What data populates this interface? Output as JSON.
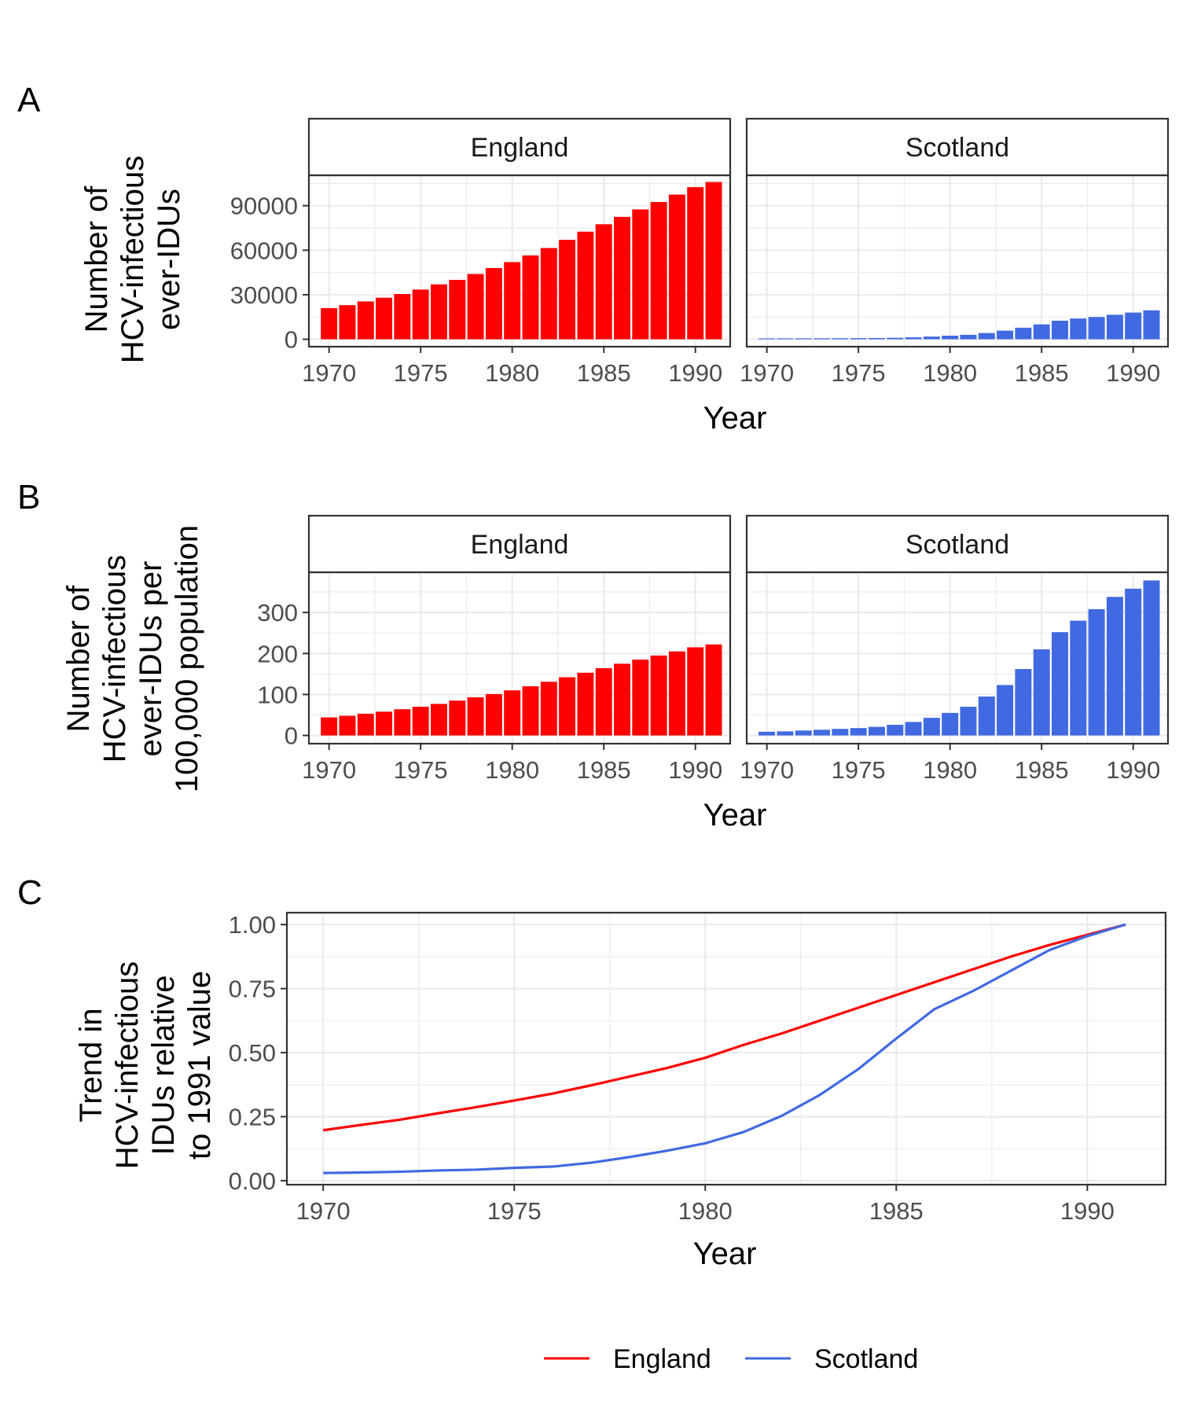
{
  "panel_labels": [
    "A",
    "B",
    "C"
  ],
  "colors": {
    "England": "#ff0000",
    "Scotland": "#4169e1",
    "grid": "#ebebeb",
    "frame": "#333333"
  },
  "legend": {
    "placement": "bottom",
    "items": [
      "England",
      "Scotland"
    ]
  },
  "chart_data": [
    {
      "panel": "A",
      "type": "bar",
      "facets": [
        "England",
        "Scotland"
      ],
      "xlabel": "Year",
      "ylabel": "Number of\nHCV-infectious\never-IDUs",
      "x_ticks": [
        1970,
        1975,
        1980,
        1985,
        1990
      ],
      "y_ticks": [
        0,
        30000,
        60000,
        90000
      ],
      "xlim": [
        1968.9,
        1991.9
      ],
      "ylim": [
        -5000,
        110500
      ],
      "grid": true,
      "categories": [
        1970,
        1971,
        1972,
        1973,
        1974,
        1975,
        1976,
        1977,
        1978,
        1979,
        1980,
        1981,
        1982,
        1983,
        1984,
        1985,
        1986,
        1987,
        1988,
        1989,
        1990,
        1991
      ],
      "series": [
        {
          "name": "England",
          "values": [
            21000,
            23000,
            25500,
            28000,
            30500,
            33500,
            37000,
            40000,
            44000,
            48000,
            52000,
            56500,
            61500,
            67000,
            72500,
            77500,
            82500,
            87500,
            92500,
            97500,
            102500,
            106000
          ]
        },
        {
          "name": "Scotland",
          "values": [
            600,
            620,
            650,
            680,
            720,
            780,
            850,
            1000,
            1300,
            1800,
            2400,
            3000,
            4200,
            5800,
            7800,
            10000,
            12500,
            14000,
            15000,
            16500,
            18000,
            19500
          ]
        }
      ]
    },
    {
      "panel": "B",
      "type": "bar",
      "facets": [
        "England",
        "Scotland"
      ],
      "xlabel": "Year",
      "ylabel": "Number of\nHCV-infectious\never-IDUs per\n100,000 population",
      "x_ticks": [
        1970,
        1975,
        1980,
        1985,
        1990
      ],
      "y_ticks": [
        0,
        100,
        200,
        300
      ],
      "xlim": [
        1968.9,
        1991.9
      ],
      "ylim": [
        -20,
        398
      ],
      "grid": true,
      "categories": [
        1970,
        1971,
        1972,
        1973,
        1974,
        1975,
        1976,
        1977,
        1978,
        1979,
        1980,
        1981,
        1982,
        1983,
        1984,
        1985,
        1986,
        1987,
        1988,
        1989,
        1990,
        1991
      ],
      "series": [
        {
          "name": "England",
          "values": [
            44,
            48,
            53,
            58,
            64,
            70,
            77,
            85,
            93,
            101,
            110,
            120,
            131,
            142,
            153,
            164,
            175,
            185,
            195,
            205,
            215,
            222
          ]
        },
        {
          "name": "Scotland",
          "values": [
            9,
            10,
            12,
            14,
            16,
            18,
            21,
            26,
            33,
            43,
            55,
            70,
            95,
            123,
            162,
            210,
            252,
            280,
            308,
            338,
            358,
            378
          ]
        }
      ]
    },
    {
      "panel": "C",
      "type": "line",
      "xlabel": "Year",
      "ylabel": "Trend in\nHCV-infectious\nIDUs relative\nto 1991 value",
      "x_ticks": [
        1970,
        1975,
        1980,
        1985,
        1990
      ],
      "y_ticks": [
        0.0,
        0.25,
        0.5,
        0.75,
        1.0
      ],
      "y_tick_labels": [
        "0.00",
        "0.25",
        "0.50",
        "0.75",
        "1.00"
      ],
      "xlim": [
        1969.05,
        1992.05
      ],
      "ylim": [
        -0.0155,
        1.0465
      ],
      "grid": true,
      "x": [
        1970,
        1971,
        1972,
        1973,
        1974,
        1975,
        1976,
        1977,
        1978,
        1979,
        1980,
        1981,
        1982,
        1983,
        1984,
        1985,
        1986,
        1987,
        1988,
        1989,
        1990,
        1991
      ],
      "series": [
        {
          "name": "England",
          "values": [
            0.197,
            0.218,
            0.238,
            0.263,
            0.287,
            0.313,
            0.34,
            0.372,
            0.406,
            0.44,
            0.48,
            0.53,
            0.575,
            0.625,
            0.675,
            0.725,
            0.775,
            0.825,
            0.875,
            0.92,
            0.96,
            1.0
          ]
        },
        {
          "name": "Scotland",
          "values": [
            0.03,
            0.032,
            0.035,
            0.04,
            0.043,
            0.05,
            0.055,
            0.07,
            0.092,
            0.117,
            0.146,
            0.19,
            0.253,
            0.335,
            0.435,
            0.555,
            0.67,
            0.74,
            0.82,
            0.9,
            0.955,
            1.0
          ]
        }
      ]
    }
  ]
}
